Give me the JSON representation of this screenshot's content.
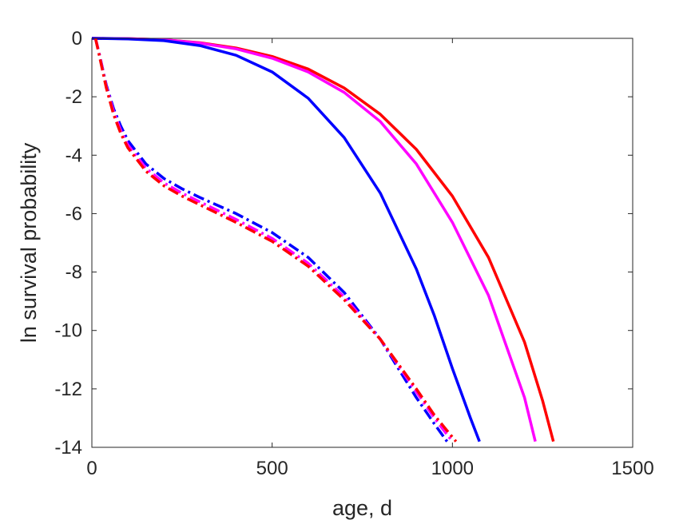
{
  "chart_data": {
    "type": "line",
    "title": "",
    "xlabel": "age, d",
    "ylabel": "ln survival probability",
    "xlim": [
      0,
      1500
    ],
    "ylim": [
      -14,
      0
    ],
    "xticks": [
      0,
      500,
      1000,
      1500
    ],
    "yticks": [
      0,
      -2,
      -4,
      -6,
      -8,
      -10,
      -12,
      -14
    ],
    "xtick_labels": [
      "0",
      "500",
      "1000",
      "1500"
    ],
    "ytick_labels": [
      "0",
      "-2",
      "-4",
      "-6",
      "-8",
      "-10",
      "-12",
      "-14"
    ],
    "grid": false,
    "legend": "none",
    "series": [
      {
        "color": "#ff0000",
        "style": "solid",
        "x": [
          0,
          100,
          200,
          300,
          400,
          500,
          600,
          700,
          800,
          900,
          1000,
          1100,
          1200,
          1250,
          1280
        ],
        "y": [
          0,
          -0.01,
          -0.05,
          -0.15,
          -0.33,
          -0.62,
          -1.05,
          -1.7,
          -2.6,
          -3.8,
          -5.4,
          -7.5,
          -10.4,
          -12.4,
          -13.8
        ]
      },
      {
        "color": "#ff00ff",
        "style": "solid",
        "x": [
          0,
          100,
          200,
          300,
          400,
          500,
          600,
          700,
          800,
          900,
          1000,
          1100,
          1200,
          1230
        ],
        "y": [
          0,
          -0.01,
          -0.05,
          -0.16,
          -0.36,
          -0.68,
          -1.15,
          -1.85,
          -2.85,
          -4.3,
          -6.3,
          -8.8,
          -12.3,
          -13.8
        ]
      },
      {
        "color": "#0000ff",
        "style": "solid",
        "x": [
          0,
          100,
          200,
          300,
          400,
          500,
          600,
          700,
          800,
          900,
          950,
          1000,
          1050,
          1075
        ],
        "y": [
          0,
          -0.02,
          -0.08,
          -0.25,
          -0.58,
          -1.15,
          -2.05,
          -3.4,
          -5.3,
          -7.9,
          -9.5,
          -11.3,
          -13.0,
          -13.8
        ]
      },
      {
        "color": "#0000ff",
        "style": "dashdot",
        "x": [
          10,
          20,
          40,
          60,
          80,
          100,
          150,
          200,
          250,
          300,
          400,
          500,
          600,
          700,
          800,
          850,
          900,
          950,
          985
        ],
        "y": [
          0,
          -0.5,
          -1.6,
          -2.4,
          -3.0,
          -3.5,
          -4.3,
          -4.8,
          -5.15,
          -5.45,
          -6.0,
          -6.65,
          -7.5,
          -8.7,
          -10.3,
          -11.3,
          -12.3,
          -13.2,
          -13.8
        ]
      },
      {
        "color": "#ff00ff",
        "style": "dashdot",
        "x": [
          10,
          20,
          40,
          60,
          80,
          100,
          150,
          200,
          250,
          300,
          400,
          500,
          600,
          700,
          800,
          850,
          900,
          950,
          1000
        ],
        "y": [
          0,
          -0.5,
          -1.65,
          -2.5,
          -3.15,
          -3.65,
          -4.45,
          -4.95,
          -5.3,
          -5.6,
          -6.2,
          -6.85,
          -7.7,
          -8.85,
          -10.3,
          -11.2,
          -12.1,
          -13.0,
          -13.8
        ]
      },
      {
        "color": "#ff0000",
        "style": "dashdot",
        "x": [
          10,
          20,
          40,
          60,
          80,
          100,
          150,
          200,
          250,
          300,
          400,
          500,
          600,
          700,
          800,
          850,
          900,
          950,
          1010
        ],
        "y": [
          0,
          -0.55,
          -1.7,
          -2.6,
          -3.25,
          -3.75,
          -4.55,
          -5.05,
          -5.4,
          -5.7,
          -6.3,
          -6.95,
          -7.8,
          -8.95,
          -10.3,
          -11.15,
          -12.0,
          -12.9,
          -13.8
        ]
      }
    ]
  }
}
